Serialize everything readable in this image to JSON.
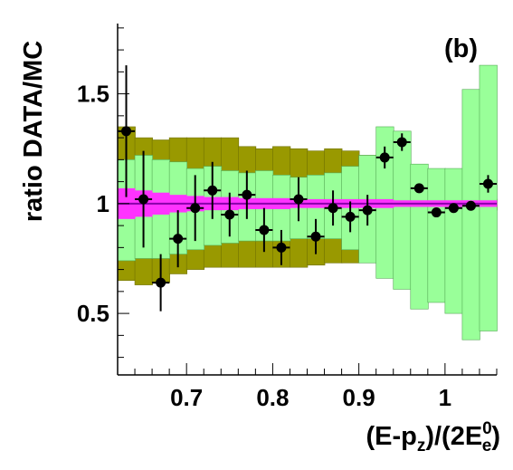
{
  "chart_data": {
    "type": "scatter",
    "panel_label": "(b)",
    "ylabel": "ratio DATA/MC",
    "xlabel": {
      "base": "(E-p",
      "sub1": "z",
      "mid": ")/(2E",
      "sup": "0",
      "sub2": "e",
      "end": ")"
    },
    "xlim": [
      0.62,
      1.06
    ],
    "ylim": [
      0.22,
      1.82
    ],
    "xticks": [
      0.7,
      0.8,
      0.9,
      1.0
    ],
    "xtick_labels": [
      "0.7",
      "0.8",
      "0.9",
      "1"
    ],
    "yticks": [
      0.5,
      1.0,
      1.5
    ],
    "ytick_labels": [
      "0.5",
      "1",
      "1.5"
    ],
    "reference_line": 1.0,
    "colors": {
      "outer_band": "#999900",
      "inner_band": "#99ff99",
      "mc_stat_band": "#ff33ff",
      "points": "#000000"
    },
    "bin_edges": [
      0.62,
      0.64,
      0.66,
      0.68,
      0.7,
      0.72,
      0.74,
      0.76,
      0.78,
      0.8,
      0.82,
      0.84,
      0.86,
      0.88,
      0.9,
      0.92,
      0.94,
      0.96,
      0.98,
      1.0,
      1.02,
      1.04,
      1.06
    ],
    "outer_band": {
      "lo": [
        0.65,
        0.63,
        0.64,
        0.68,
        0.7,
        0.71,
        0.71,
        0.71,
        0.71,
        0.71,
        0.71,
        0.72,
        0.73,
        0.73,
        0.74,
        0.78,
        0.86,
        0.85,
        0.9,
        0.95,
        0.96,
        0.97
      ],
      "hi": [
        1.35,
        1.3,
        1.29,
        1.3,
        1.3,
        1.3,
        1.3,
        1.26,
        1.25,
        1.26,
        1.25,
        1.24,
        1.25,
        1.24,
        1.22,
        1.18,
        1.1,
        1.08,
        1.04,
        1.03,
        1.02,
        1.02
      ]
    },
    "inner_band": {
      "lo": [
        0.74,
        0.75,
        0.75,
        0.77,
        0.79,
        0.81,
        0.82,
        0.83,
        0.83,
        0.83,
        0.84,
        0.84,
        0.84,
        0.79,
        0.73,
        0.66,
        0.61,
        0.52,
        0.55,
        0.5,
        0.38,
        0.42
      ],
      "hi": [
        1.2,
        1.22,
        1.2,
        1.19,
        1.16,
        1.17,
        1.15,
        1.14,
        1.15,
        1.13,
        1.12,
        1.13,
        1.14,
        1.17,
        1.22,
        1.35,
        1.33,
        1.18,
        1.16,
        1.16,
        1.52,
        1.63
      ]
    },
    "mc_stat_band": {
      "lo": [
        0.93,
        0.94,
        0.95,
        0.96,
        0.965,
        0.97,
        0.97,
        0.975,
        0.975,
        0.975,
        0.98,
        0.98,
        0.98,
        0.98,
        0.98,
        0.98,
        0.985,
        0.985,
        0.985,
        0.985,
        0.985,
        0.985
      ],
      "hi": [
        1.07,
        1.06,
        1.05,
        1.04,
        1.035,
        1.03,
        1.03,
        1.025,
        1.025,
        1.025,
        1.02,
        1.02,
        1.02,
        1.02,
        1.02,
        1.02,
        1.015,
        1.015,
        1.015,
        1.015,
        1.015,
        1.015
      ]
    },
    "points": {
      "x": [
        0.63,
        0.65,
        0.67,
        0.69,
        0.71,
        0.73,
        0.75,
        0.77,
        0.79,
        0.81,
        0.83,
        0.85,
        0.87,
        0.89,
        0.91,
        0.93,
        0.95,
        0.97,
        0.99,
        1.01,
        1.03,
        1.05
      ],
      "y": [
        1.33,
        1.02,
        0.64,
        0.84,
        0.98,
        1.06,
        0.95,
        1.04,
        0.88,
        0.8,
        1.02,
        0.85,
        0.98,
        0.94,
        0.97,
        1.21,
        1.28,
        1.07,
        0.96,
        0.98,
        0.99,
        1.09
      ],
      "yerr": [
        0.3,
        0.22,
        0.13,
        0.13,
        0.15,
        0.13,
        0.1,
        0.11,
        0.1,
        0.08,
        0.1,
        0.08,
        0.08,
        0.07,
        0.07,
        0.05,
        0.04,
        0.02,
        0.015,
        0.01,
        0.01,
        0.04
      ],
      "xerr": 0.01
    }
  }
}
